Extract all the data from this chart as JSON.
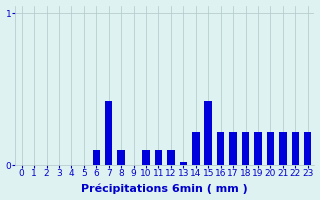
{
  "title": "",
  "xlabel": "Précipitations 6min ( mm )",
  "categories": [
    0,
    1,
    2,
    3,
    4,
    5,
    6,
    7,
    8,
    9,
    10,
    11,
    12,
    13,
    14,
    15,
    16,
    17,
    18,
    19,
    20,
    21,
    22,
    23
  ],
  "values": [
    0,
    0,
    0,
    0,
    0,
    0,
    0.1,
    0.42,
    0.1,
    0,
    0.1,
    0.1,
    0.1,
    0.02,
    0.22,
    0.42,
    0.22,
    0.22,
    0.22,
    0.22,
    0.22,
    0.22,
    0.22,
    0.22
  ],
  "bar_color": "#0000dd",
  "bg_color": "#dff2f2",
  "plot_bg_color": "#dff2f2",
  "yticks": [
    0,
    1
  ],
  "ylim": [
    0,
    1.05
  ],
  "xlim": [
    -0.5,
    23.5
  ],
  "grid_color": "#b0c8c8",
  "tick_color": "#0000cc",
  "label_color": "#0000cc",
  "xlabel_fontsize": 8,
  "tick_fontsize": 6.5,
  "bar_width": 0.6
}
